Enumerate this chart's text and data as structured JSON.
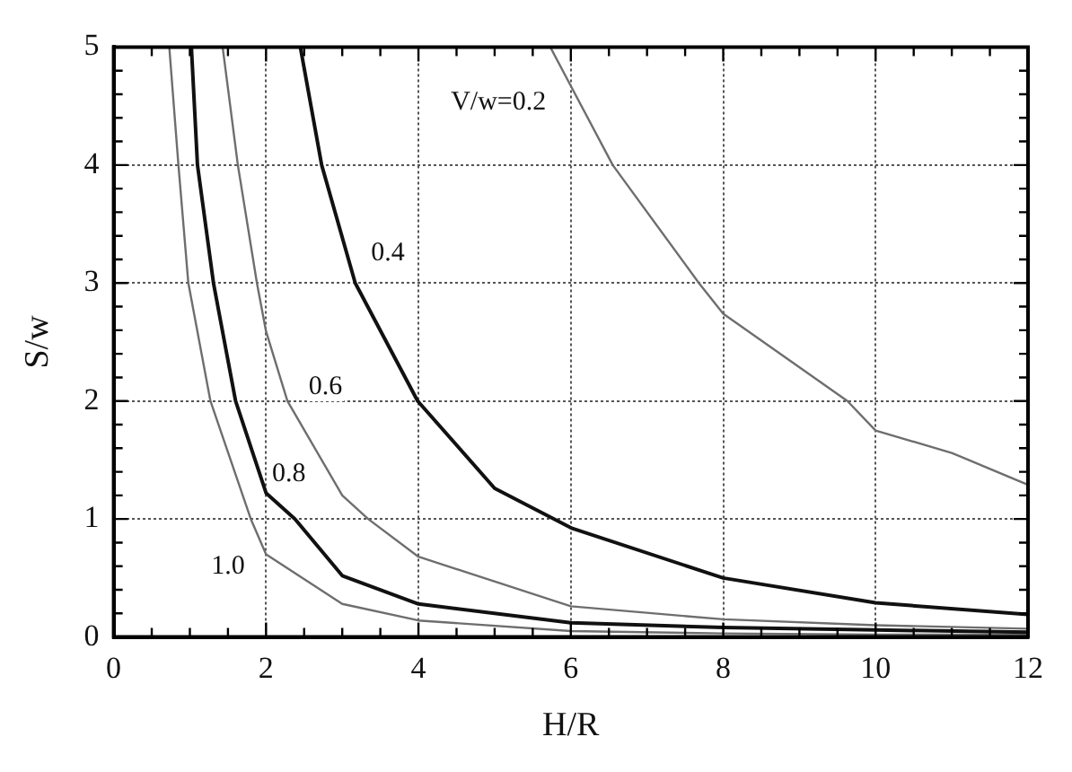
{
  "chart_data": {
    "type": "line",
    "xlabel": "H/R",
    "ylabel": "S/w",
    "xlim": [
      0,
      12
    ],
    "ylim": [
      0,
      5
    ],
    "xticks": [
      0,
      {
        "value": 0.5,
        "label": null
      },
      {
        "value": 1,
        "label": null
      },
      {
        "value": 1.5,
        "label": null
      },
      2,
      {
        "value": 2.5,
        "label": null
      },
      {
        "value": 3,
        "label": null
      },
      {
        "value": 3.5,
        "label": null
      },
      4,
      {
        "value": 4.5,
        "label": null
      },
      {
        "value": 5,
        "label": null
      },
      {
        "value": 5.5,
        "label": null
      },
      6,
      {
        "value": 6.5,
        "label": null
      },
      {
        "value": 7,
        "label": null
      },
      {
        "value": 7.5,
        "label": null
      },
      8,
      {
        "value": 8.5,
        "label": null
      },
      {
        "value": 9,
        "label": null
      },
      {
        "value": 9.5,
        "label": null
      },
      10,
      {
        "value": 10.5,
        "label": null
      },
      {
        "value": 11,
        "label": null
      },
      {
        "value": 11.5,
        "label": null
      },
      12
    ],
    "yticks": [
      0,
      {
        "value": 0.2,
        "label": null
      },
      {
        "value": 0.4,
        "label": null
      },
      {
        "value": 0.6,
        "label": null
      },
      {
        "value": 0.8,
        "label": null
      },
      1,
      {
        "value": 1.2,
        "label": null
      },
      {
        "value": 1.4,
        "label": null
      },
      {
        "value": 1.6,
        "label": null
      },
      {
        "value": 1.8,
        "label": null
      },
      2,
      {
        "value": 2.2,
        "label": null
      },
      {
        "value": 2.4,
        "label": null
      },
      {
        "value": 2.6,
        "label": null
      },
      {
        "value": 2.8,
        "label": null
      },
      3,
      {
        "value": 3.2,
        "label": null
      },
      {
        "value": 3.4,
        "label": null
      },
      {
        "value": 3.6,
        "label": null
      },
      {
        "value": 3.8,
        "label": null
      },
      4,
      {
        "value": 4.2,
        "label": null
      },
      {
        "value": 4.4,
        "label": null
      },
      {
        "value": 4.6,
        "label": null
      },
      {
        "value": 4.8,
        "label": null
      },
      5
    ],
    "grid": true,
    "legend": false,
    "marker": "none",
    "line_style": "solid",
    "series": [
      {
        "name": "V/w=0.2",
        "color": "#6e6e6e",
        "x": [
          5.73,
          6,
          6.55,
          7.68,
          8,
          9.63,
          10,
          11,
          12
        ],
        "values": [
          5,
          4.67,
          4,
          3,
          2.74,
          2,
          1.75,
          1.56,
          1.29
        ]
      },
      {
        "name": "0.4",
        "color": "#111111",
        "x": [
          2.45,
          2.73,
          3.17,
          3.99,
          5,
          6.02,
          8,
          10,
          12
        ],
        "values": [
          5,
          4,
          3,
          2,
          1.26,
          0.92,
          0.5,
          0.29,
          0.19
        ]
      },
      {
        "name": "0.6",
        "color": "#6e6e6e",
        "x": [
          1.43,
          1.63,
          1.88,
          2,
          2.28,
          3,
          3.34,
          4,
          6,
          8,
          10,
          12
        ],
        "values": [
          5,
          4,
          3,
          2.59,
          2,
          1.2,
          1,
          0.68,
          0.26,
          0.15,
          0.1,
          0.07
        ]
      },
      {
        "name": "0.8",
        "color": "#111111",
        "x": [
          1.02,
          1.1,
          1.31,
          1.6,
          2,
          2.38,
          3,
          4,
          6,
          8,
          10,
          12
        ],
        "values": [
          5,
          4,
          3,
          2,
          1.22,
          1,
          0.52,
          0.28,
          0.12,
          0.08,
          0.06,
          0.04
        ]
      },
      {
        "name": "1.0",
        "color": "#6e6e6e",
        "x": [
          0.73,
          0.85,
          0.98,
          1.27,
          1.8,
          2,
          3,
          4,
          6,
          8,
          10,
          12
        ],
        "values": [
          5,
          4,
          3,
          2,
          1,
          0.7,
          0.28,
          0.14,
          0.05,
          0.03,
          0.02,
          0.02
        ]
      }
    ]
  }
}
